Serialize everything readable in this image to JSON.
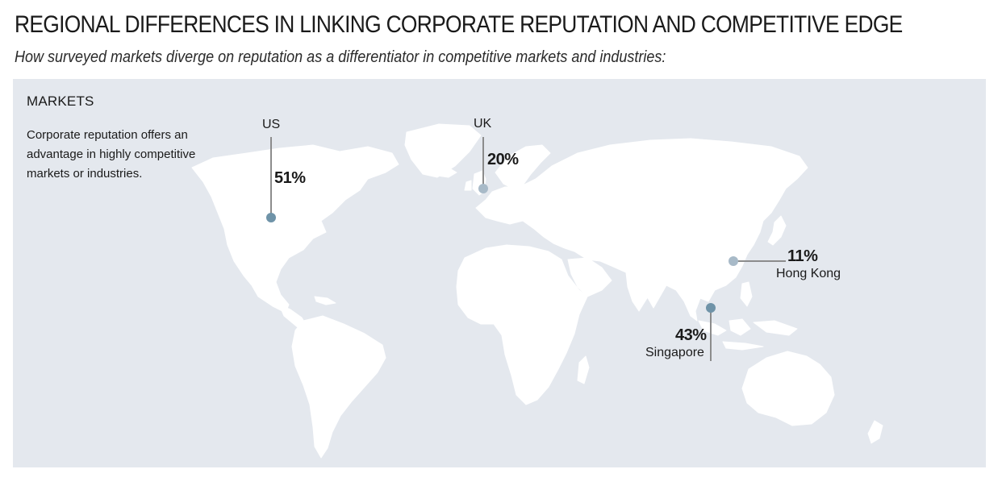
{
  "title": "REGIONAL DIFFERENCES IN LINKING CORPORATE REPUTATION AND COMPETITIVE EDGE",
  "subtitle": "How surveyed markets diverge on reputation as a differentiator in competitive markets and industries:",
  "legend": {
    "heading": "MARKETS",
    "description": "Corporate reputation offers an advantage in highly competitive markets or industries."
  },
  "markets": [
    {
      "name": "US",
      "value": "51%"
    },
    {
      "name": "UK",
      "value": "20%"
    },
    {
      "name": "Hong Kong",
      "value": "11%"
    },
    {
      "name": "Singapore",
      "value": "43%"
    }
  ],
  "colors": {
    "background": "#e4e8ee",
    "land": "#ffffff",
    "marker_dark": "#6f93a8",
    "marker_light": "#a8bac8",
    "leader_line": "#8c8c8c"
  }
}
